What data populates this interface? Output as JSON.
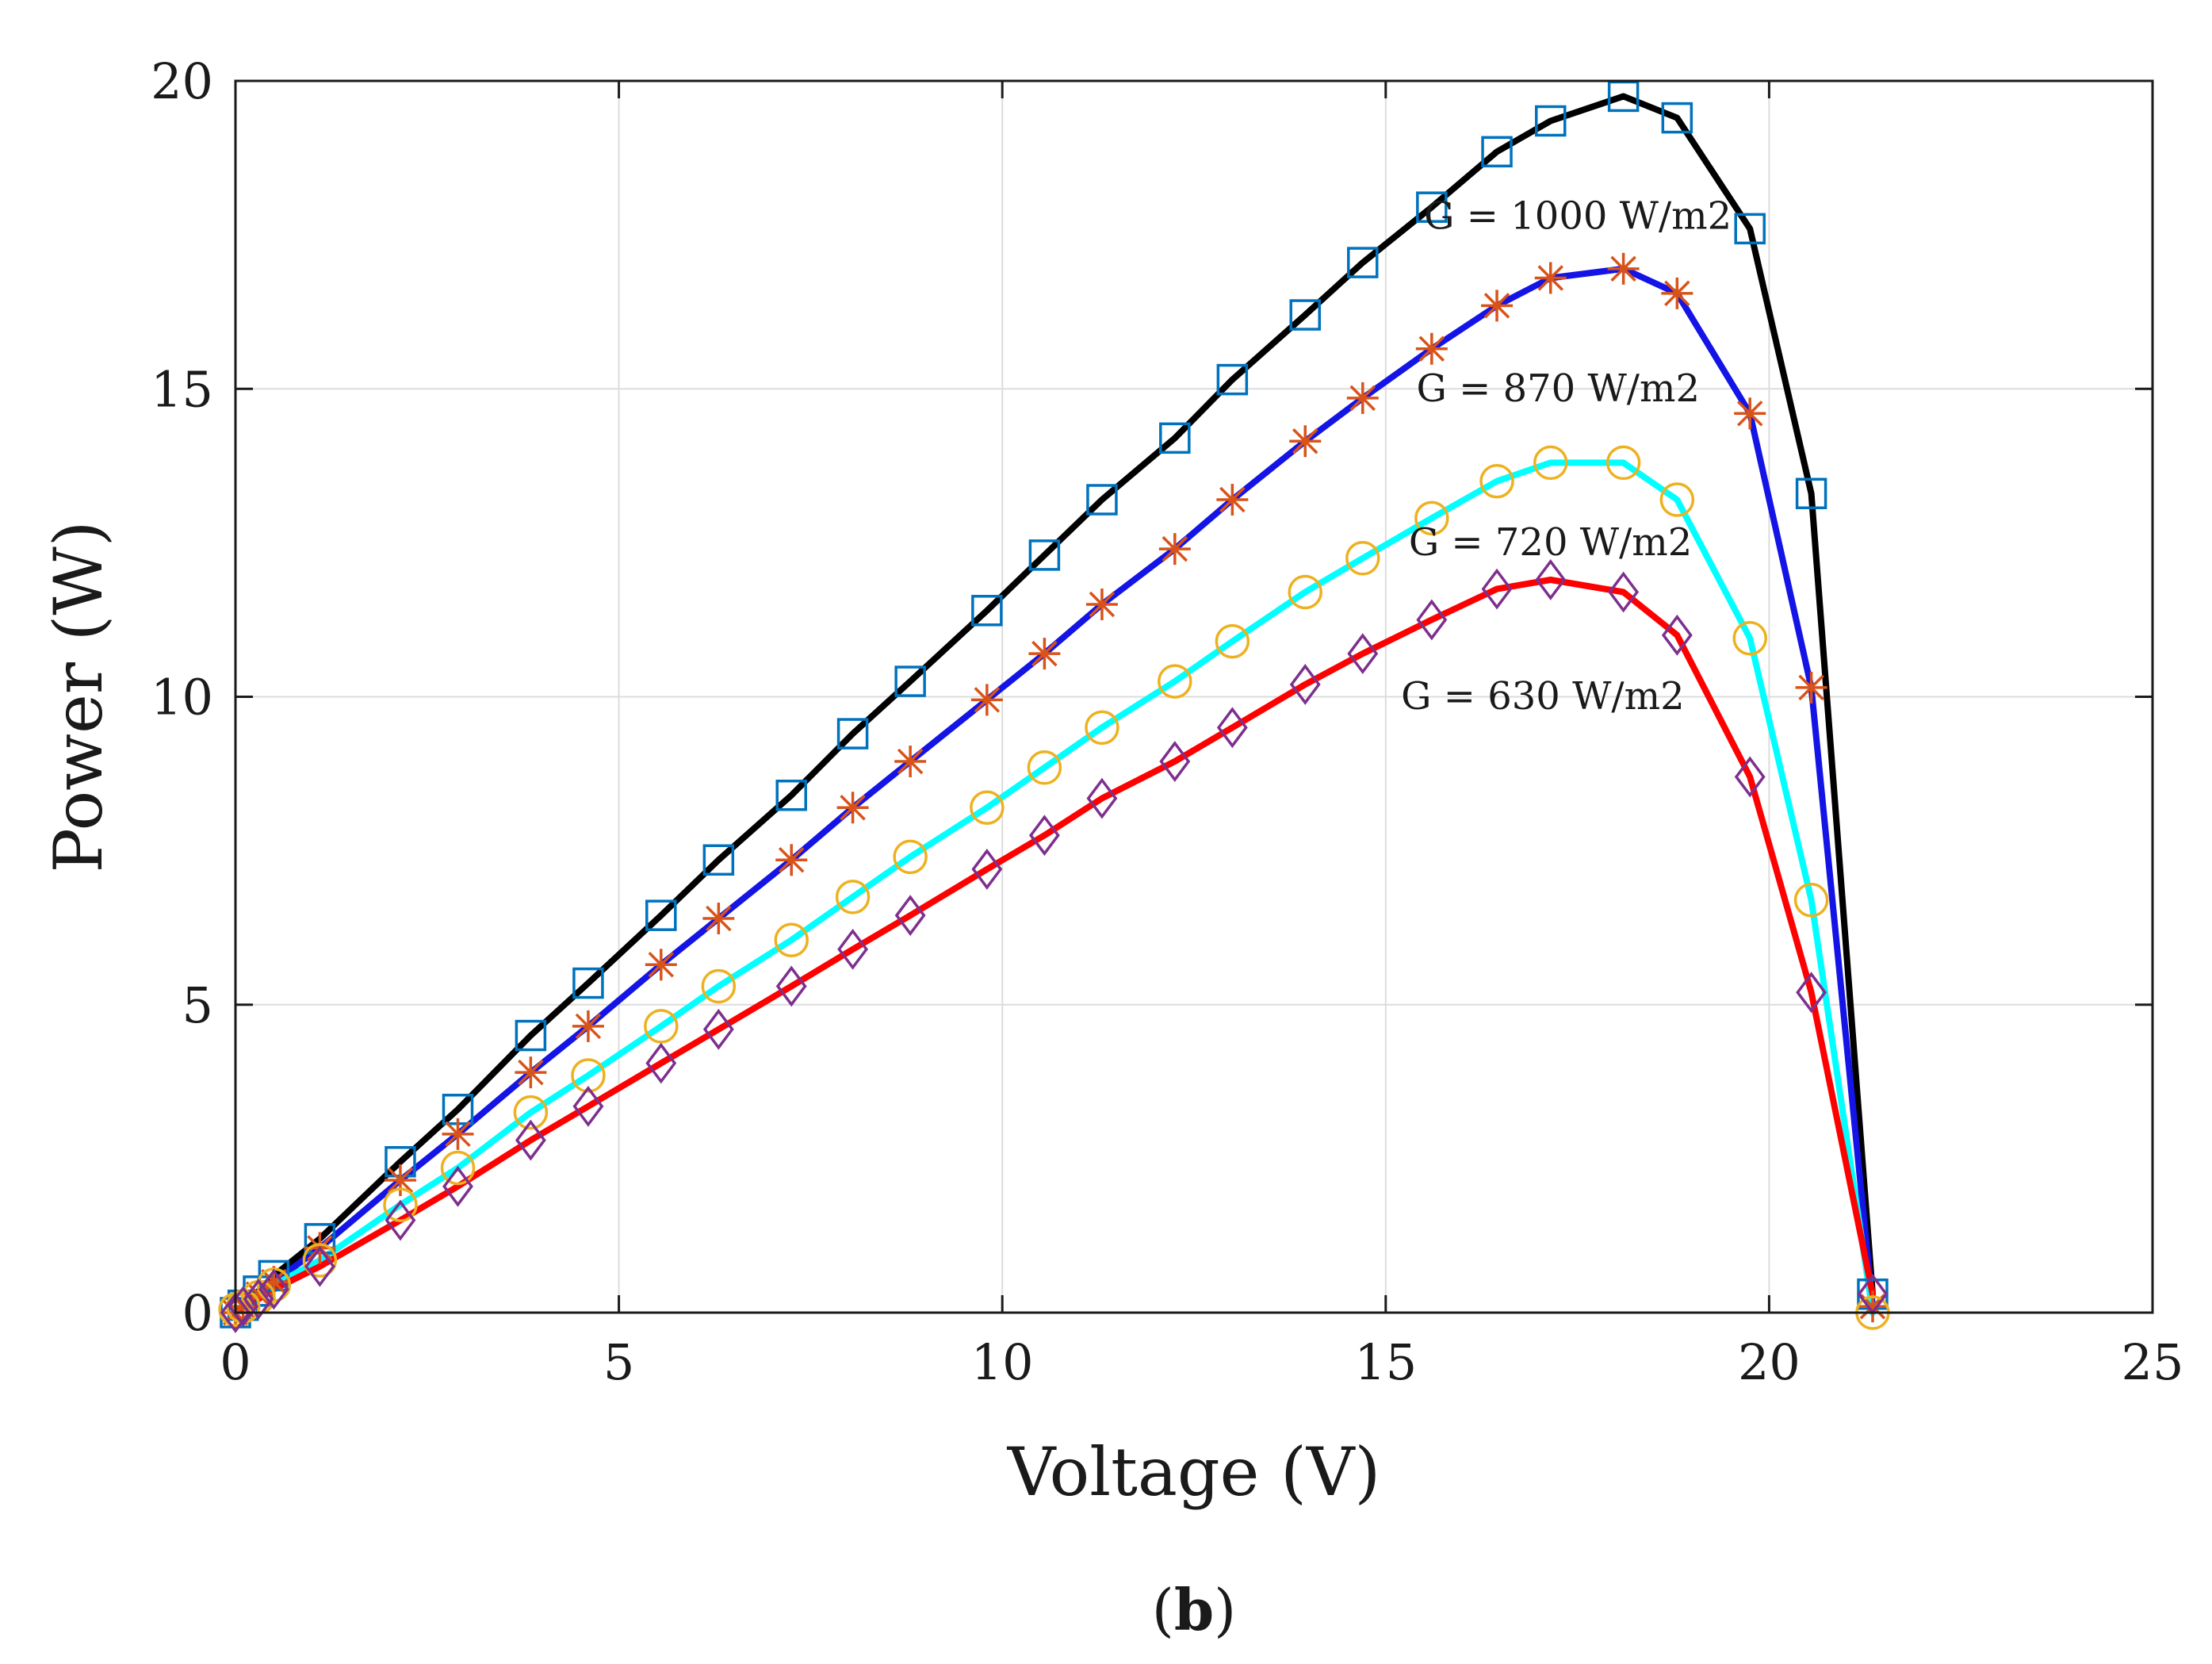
{
  "chart_data": {
    "type": "line",
    "title": "",
    "xlabel": "Voltage (V)",
    "ylabel": "Power (W)",
    "xlim": [
      0,
      25
    ],
    "ylim": [
      0,
      20
    ],
    "xticks": [
      0,
      5,
      10,
      15,
      20,
      25
    ],
    "yticks": [
      0,
      5,
      10,
      15,
      20
    ],
    "xtick_labels": [
      "0",
      "5",
      "10",
      "15",
      "20",
      "25"
    ],
    "ytick_labels": [
      "0",
      "5",
      "10",
      "15",
      "20"
    ],
    "grid": true,
    "caption": {
      "open": "(",
      "letter": "b",
      "close": ")"
    },
    "series": [
      {
        "name": "G = 1000 W/m2",
        "line_color": "#000000",
        "marker": "square",
        "marker_color": "#0072BD",
        "x": [
          0,
          0.1,
          0.3,
          0.5,
          1.1,
          2.15,
          2.9,
          3.85,
          4.6,
          5.55,
          6.3,
          7.25,
          8.05,
          8.8,
          9.8,
          10.55,
          11.3,
          12.25,
          13.0,
          13.95,
          14.7,
          15.6,
          16.45,
          17.15,
          18.1,
          18.8,
          19.75,
          20.55,
          21.35
        ],
        "y": [
          0,
          0.12,
          0.35,
          0.6,
          1.2,
          2.45,
          3.3,
          4.5,
          5.35,
          6.45,
          7.35,
          8.4,
          9.4,
          10.25,
          11.4,
          12.3,
          13.2,
          14.2,
          15.15,
          16.2,
          17.05,
          17.95,
          18.85,
          19.35,
          19.75,
          19.4,
          17.6,
          13.3,
          0.3
        ]
      },
      {
        "name": "G = 870 W/m2",
        "line_color": "#1414E6",
        "marker": "asterisk",
        "marker_color": "#D95319",
        "x": [
          0,
          0.1,
          0.3,
          0.5,
          1.1,
          2.15,
          2.9,
          3.85,
          4.6,
          5.55,
          6.3,
          7.25,
          8.05,
          8.8,
          9.8,
          10.55,
          11.3,
          12.25,
          13.0,
          13.95,
          14.7,
          15.6,
          16.45,
          17.15,
          18.1,
          18.8,
          19.75,
          20.55,
          21.35
        ],
        "y": [
          0,
          0.1,
          0.3,
          0.5,
          1.05,
          2.15,
          2.9,
          3.9,
          4.65,
          5.65,
          6.4,
          7.35,
          8.2,
          8.95,
          9.95,
          10.7,
          11.5,
          12.4,
          13.2,
          14.15,
          14.85,
          15.65,
          16.35,
          16.8,
          16.95,
          16.55,
          14.6,
          10.15,
          0.1
        ]
      },
      {
        "name": "G = 720 W/m2",
        "line_color": "#00FFFF",
        "marker": "circle",
        "marker_color": "#EDB120",
        "x": [
          0,
          0.1,
          0.3,
          0.5,
          1.1,
          2.15,
          2.9,
          3.85,
          4.6,
          5.55,
          6.3,
          7.25,
          8.05,
          8.8,
          9.8,
          10.55,
          11.3,
          12.25,
          13.0,
          13.95,
          14.7,
          15.6,
          16.45,
          17.15,
          18.1,
          18.8,
          19.75,
          20.55,
          21.35
        ],
        "y": [
          0.05,
          0.1,
          0.25,
          0.45,
          0.85,
          1.75,
          2.35,
          3.25,
          3.85,
          4.65,
          5.3,
          6.05,
          6.75,
          7.4,
          8.2,
          8.85,
          9.5,
          10.25,
          10.9,
          11.7,
          12.25,
          12.9,
          13.5,
          13.8,
          13.8,
          13.2,
          10.95,
          6.7,
          0.0
        ]
      },
      {
        "name": "G = 630 W/m2",
        "line_color": "#FF0000",
        "marker": "diamond",
        "marker_color": "#7E2F8E",
        "x": [
          0,
          0.1,
          0.3,
          0.5,
          1.1,
          2.15,
          2.9,
          3.85,
          4.6,
          5.55,
          6.3,
          7.25,
          8.05,
          8.8,
          9.8,
          10.55,
          11.3,
          12.25,
          13.0,
          13.95,
          14.7,
          15.6,
          16.45,
          17.15,
          18.1,
          18.8,
          19.75,
          20.55,
          21.35
        ],
        "y": [
          0,
          0.1,
          0.22,
          0.38,
          0.75,
          1.5,
          2.05,
          2.8,
          3.35,
          4.05,
          4.6,
          5.3,
          5.9,
          6.45,
          7.2,
          7.75,
          8.35,
          8.95,
          9.5,
          10.2,
          10.7,
          11.25,
          11.75,
          11.9,
          11.7,
          11.0,
          8.7,
          5.2,
          0.3
        ]
      }
    ],
    "annotations": [
      {
        "text": "G = 1000 W/m2",
        "x": 15.5,
        "y": 17.6
      },
      {
        "text": "G = 870 W/m2",
        "x": 15.4,
        "y": 14.8
      },
      {
        "text": "G = 720 W/m2",
        "x": 15.3,
        "y": 12.3
      },
      {
        "text": "G = 630 W/m2",
        "x": 15.2,
        "y": 9.8
      }
    ]
  }
}
